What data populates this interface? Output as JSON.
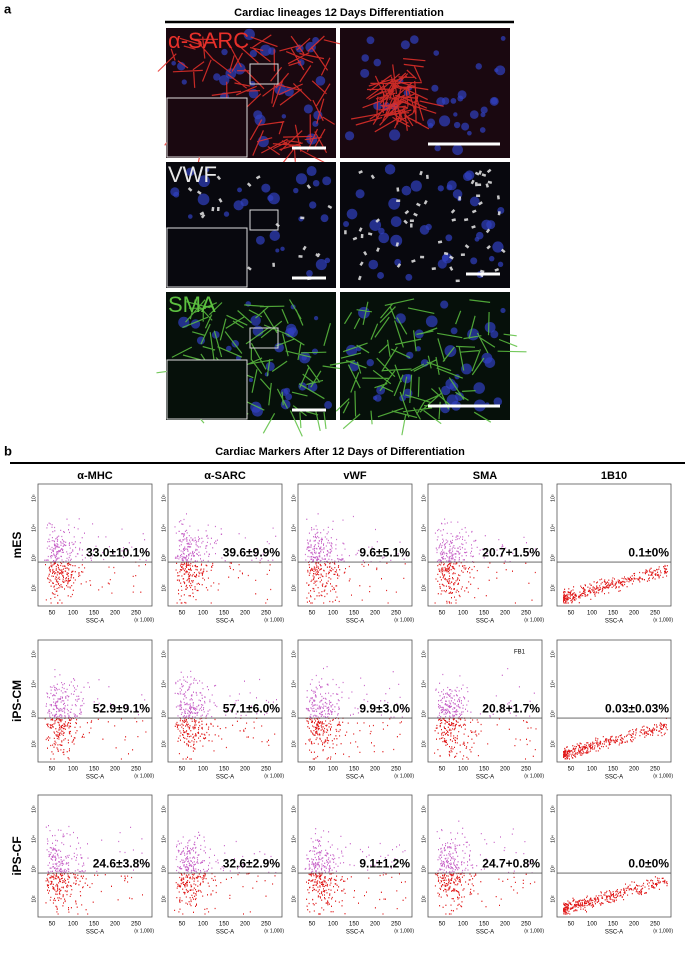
{
  "panel_a": {
    "label": "a",
    "title": "Cardiac lineages 12 Days Differentiation",
    "rows": [
      {
        "stain": "α-SARC"
      },
      {
        "stain": "VWF"
      },
      {
        "stain": "SMA"
      }
    ]
  },
  "panel_b": {
    "label": "b",
    "title": "Cardiac Markers After 12 Days of Differentiation",
    "columns": [
      "α-MHC",
      "α-SARC",
      "vWF",
      "SMA",
      "1B10"
    ],
    "rows": [
      {
        "name": "mES",
        "values": [
          "33.0±10.1%",
          "39.6±9.9%",
          "9.6±5.1%",
          "20.7+1.5%",
          "0.1±0%"
        ]
      },
      {
        "name": "iPS-CM",
        "values": [
          "52.9±9.1%",
          "57.1±6.0%",
          "9.9±3.0%",
          "20.8+1.7%",
          "0.03±0.03%"
        ]
      },
      {
        "name": "iPS-CF",
        "values": [
          "24.6±3.8%",
          "32.6±2.9%",
          "9.1±1.2%",
          "24.7+0.8%",
          "0.0±0%"
        ]
      }
    ],
    "x_axis_label": "SSC-A",
    "x_axis_unit": "(x 1,000)",
    "x_ticks": [
      "50",
      "100",
      "150",
      "200",
      "250"
    ],
    "y_ticks": [
      "10⁵",
      "10⁴",
      "10³",
      "10²"
    ],
    "gate_label": "FB1"
  }
}
